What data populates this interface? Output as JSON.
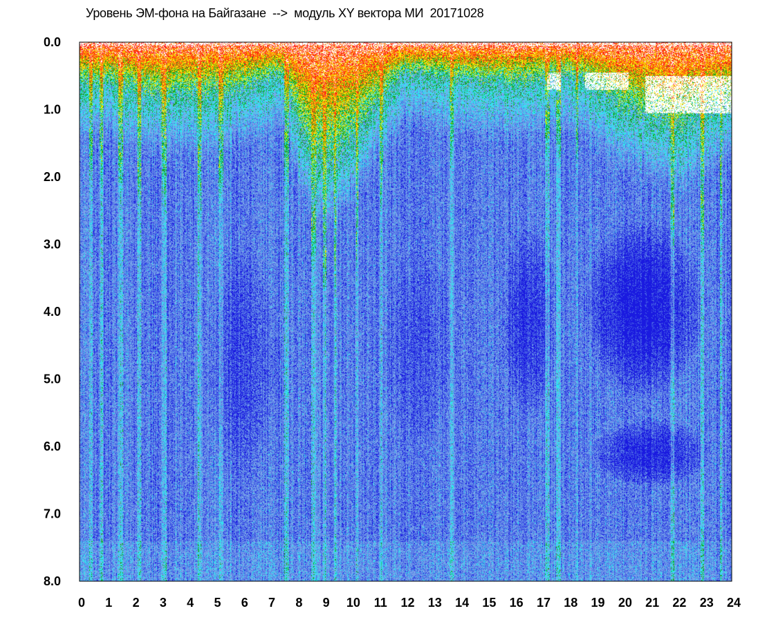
{
  "chart_data": {
    "type": "heatmap",
    "title": "Уровень ЭМ-фона на Байгазане  -->  модуль XY вектора МИ  20171028",
    "xlabel": "",
    "ylabel": "",
    "x_range": [
      0,
      24
    ],
    "y_range": [
      0,
      8
    ],
    "y_inverted": true,
    "x_ticks": [
      "0",
      "1",
      "2",
      "3",
      "4",
      "5",
      "6",
      "7",
      "8",
      "9",
      "10",
      "11",
      "12",
      "13",
      "14",
      "15",
      "16",
      "17",
      "18",
      "19",
      "20",
      "21",
      "22",
      "23",
      "24"
    ],
    "y_ticks": [
      "0.0",
      "1.0",
      "2.0",
      "3.0",
      "4.0",
      "5.0",
      "6.0",
      "7.0",
      "8.0"
    ],
    "grid": false,
    "legend": "none",
    "colorscale": [
      "#1a1ae0",
      "#4f6fe6",
      "#79a7ea",
      "#2ee6f0",
      "#13a51b",
      "#f4f40a",
      "#ff8a00",
      "#ff1a1a",
      "#ffffff"
    ],
    "intensity_profile": {
      "hours": [
        0,
        1,
        2,
        3,
        4,
        5,
        6,
        7,
        7.5,
        8,
        8.5,
        9,
        9.5,
        10,
        10.5,
        11,
        11.5,
        12,
        13,
        14,
        15,
        16,
        17,
        17.5,
        18,
        18.5,
        19,
        19.5,
        20,
        20.5,
        21,
        21.5,
        22,
        22.5,
        23,
        23.5,
        24
      ],
      "high_level_depth": [
        0.65,
        0.7,
        0.8,
        0.95,
        0.9,
        0.85,
        0.8,
        0.6,
        0.55,
        1.3,
        1.8,
        2.0,
        1.8,
        1.6,
        1.3,
        1.0,
        0.7,
        0.5,
        0.55,
        0.6,
        0.65,
        0.7,
        0.6,
        0.5,
        0.6,
        0.6,
        0.8,
        1.0,
        1.1,
        1.2,
        1.2,
        1.3,
        1.5,
        1.3,
        1.2,
        1.1,
        1.0
      ]
    },
    "saturated_regions": [
      {
        "x": [
          17.2,
          17.7
        ],
        "y": [
          0.45,
          0.7
        ]
      },
      {
        "x": [
          18.6,
          20.2
        ],
        "y": [
          0.45,
          0.7
        ]
      },
      {
        "x": [
          20.8,
          24.0
        ],
        "y": [
          0.5,
          1.05
        ]
      }
    ],
    "dark_regions": [
      {
        "x": [
          15.5,
          17.6
        ],
        "y": [
          2.7,
          5.6
        ],
        "level": 0.55
      },
      {
        "x": [
          18.5,
          23.0
        ],
        "y": [
          2.6,
          5.3
        ],
        "level": 0.85
      },
      {
        "x": [
          18.8,
          23.3
        ],
        "y": [
          5.6,
          6.6
        ],
        "level": 0.7
      },
      {
        "x": [
          4.5,
          7.5
        ],
        "y": [
          3.0,
          6.5
        ],
        "level": 0.35
      },
      {
        "x": [
          11.0,
          14.0
        ],
        "y": [
          3.0,
          6.0
        ],
        "level": 0.25
      }
    ],
    "bright_streaks_hours": [
      0.4,
      0.8,
      1.5,
      2.2,
      3.1,
      4.4,
      5.2,
      7.6,
      8.6,
      9.0,
      9.4,
      10.2,
      11.1,
      13.7,
      17.2,
      17.6,
      18.3,
      21.8,
      22.9,
      23.6
    ]
  }
}
